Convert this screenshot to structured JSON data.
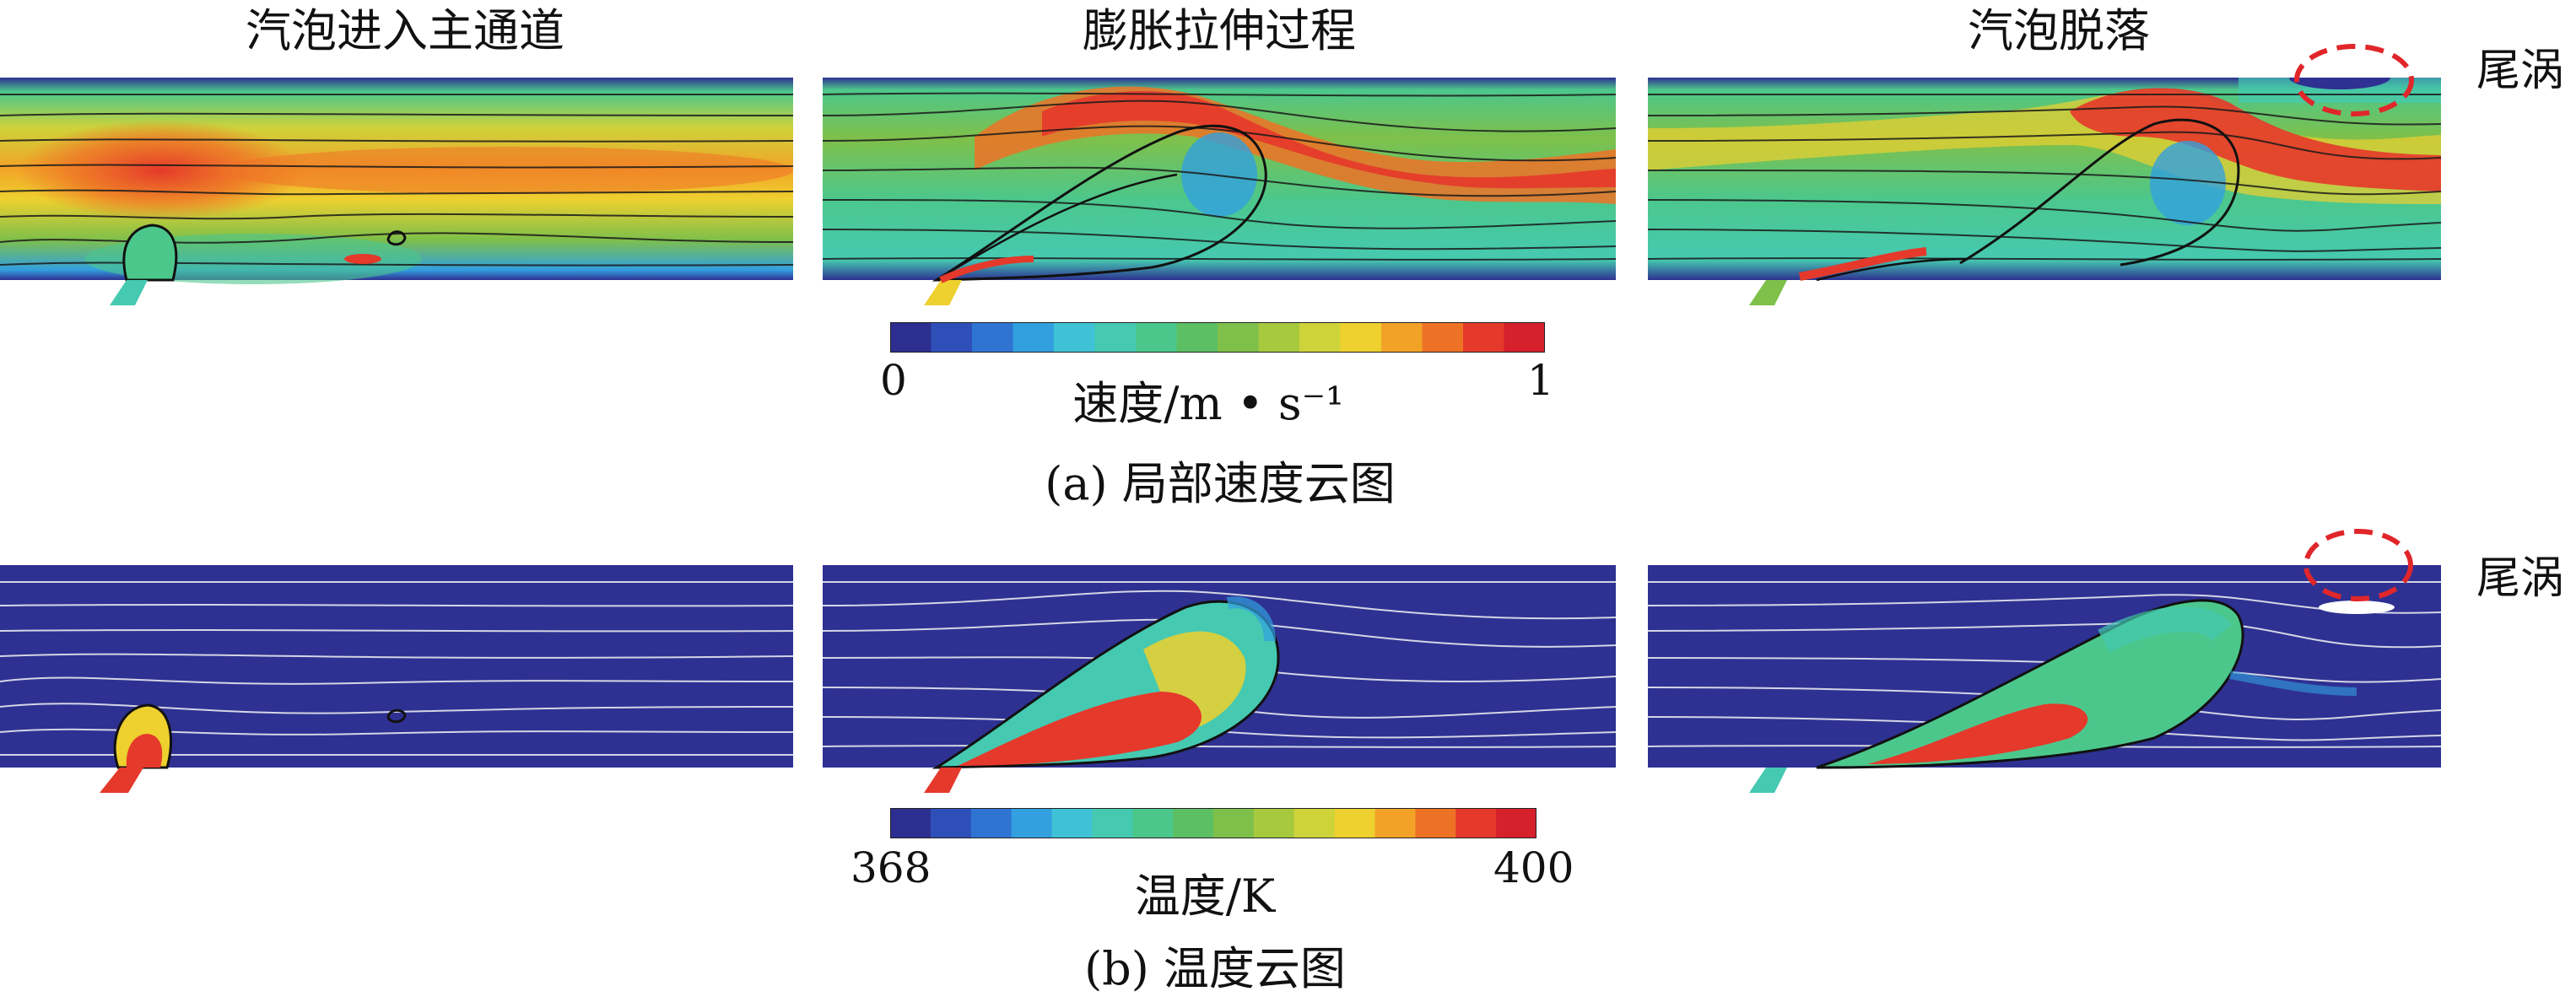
{
  "columns": [
    {
      "title": "汽泡进入主通道"
    },
    {
      "title": "膨胀拉伸过程"
    },
    {
      "title": "汽泡脱落"
    }
  ],
  "side_labels": {
    "top": "尾涡",
    "bottom": "尾涡"
  },
  "colorbars": {
    "velocity": {
      "min_label": "0",
      "max_label": "1",
      "min": 0,
      "max": 1,
      "title": "速度/m • s⁻¹",
      "colors": [
        "#2c2f8f",
        "#2f4fb8",
        "#2f74d2",
        "#32a0df",
        "#3fc2d6",
        "#45c9b1",
        "#4cc78c",
        "#5dbf63",
        "#7fc04a",
        "#a6c93e",
        "#cfd33a",
        "#eed02f",
        "#f2a327",
        "#ee7226",
        "#e5392b",
        "#d6202c"
      ]
    },
    "temperature": {
      "min_label": "368",
      "max_label": "400",
      "min": 368,
      "max": 400,
      "title": "温度/K",
      "colors": [
        "#2c2f8f",
        "#2f4fb8",
        "#2f74d2",
        "#32a0df",
        "#3fc2d6",
        "#45c9b1",
        "#4cc78c",
        "#5dbf63",
        "#7fc04a",
        "#a6c93e",
        "#cfd33a",
        "#eed02f",
        "#f2a327",
        "#ee7226",
        "#e5392b",
        "#d6202c"
      ]
    }
  },
  "captions": {
    "a": "(a) 局部速度云图",
    "b": "(b) 温度云图"
  },
  "colors": {
    "wake_marker": "#e0262a",
    "streamline_velocity": "#1a1a1a",
    "streamline_temperature": "#f2f2f2",
    "background_blue": "#2e3192",
    "bubble_outline": "#111111"
  }
}
